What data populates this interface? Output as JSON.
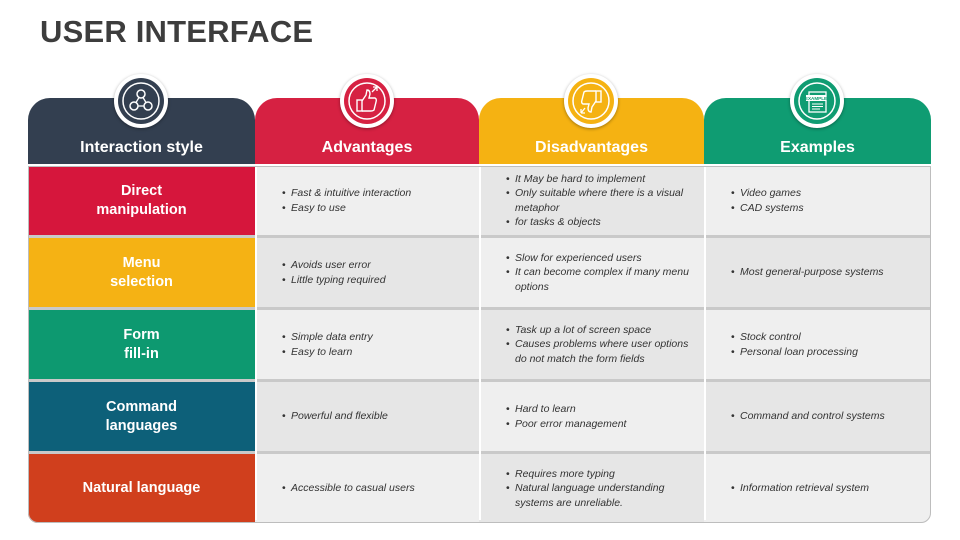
{
  "title": "USER INTERFACE",
  "columns": [
    {
      "label": "Interaction style",
      "color": "#333f50",
      "icon": "users-network-icon"
    },
    {
      "label": "Advantages",
      "color": "#d62142",
      "icon": "thumbs-up-icon"
    },
    {
      "label": "Disadvantages",
      "color": "#f5b212",
      "icon": "thumbs-down-icon"
    },
    {
      "label": "Examples",
      "color": "#0f9c72",
      "icon": "example-document-icon",
      "icon_text": "EXAMPLE"
    }
  ],
  "rows": [
    {
      "style": "Direct\nmanipulation",
      "color": "#d6163c",
      "advantages": [
        "Fast & intuitive interaction",
        "Easy to use"
      ],
      "disadvantages": [
        "It May be hard to implement",
        "Only suitable where there is a visual metaphor",
        "for tasks & objects"
      ],
      "examples": [
        "Video games",
        "CAD systems"
      ]
    },
    {
      "style": "Menu\nselection",
      "color": "#f5b214",
      "advantages": [
        "Avoids user error",
        "Little typing required"
      ],
      "disadvantages": [
        "Slow for experienced users",
        "It can become complex if many menu options"
      ],
      "examples": [
        "Most general-purpose systems"
      ]
    },
    {
      "style": "Form\nfill-in",
      "color": "#0d9970",
      "advantages": [
        "Simple data entry",
        "Easy to learn"
      ],
      "disadvantages": [
        "Task up a lot of screen space",
        "Causes problems where user options do not match the form fields"
      ],
      "examples": [
        "Stock control",
        "Personal loan processing"
      ]
    },
    {
      "style": "Command\nlanguages",
      "color": "#0d6079",
      "advantages": [
        "Powerful and flexible"
      ],
      "disadvantages": [
        "Hard to learn",
        "Poor error management"
      ],
      "examples": [
        "Command and control systems"
      ]
    },
    {
      "style": "Natural language",
      "color": "#d03f1d",
      "advantages": [
        "Accessible to casual users"
      ],
      "disadvantages": [
        "Requires more typing",
        "Natural language understanding systems are unreliable."
      ],
      "examples": [
        "Information retrieval system"
      ]
    }
  ]
}
